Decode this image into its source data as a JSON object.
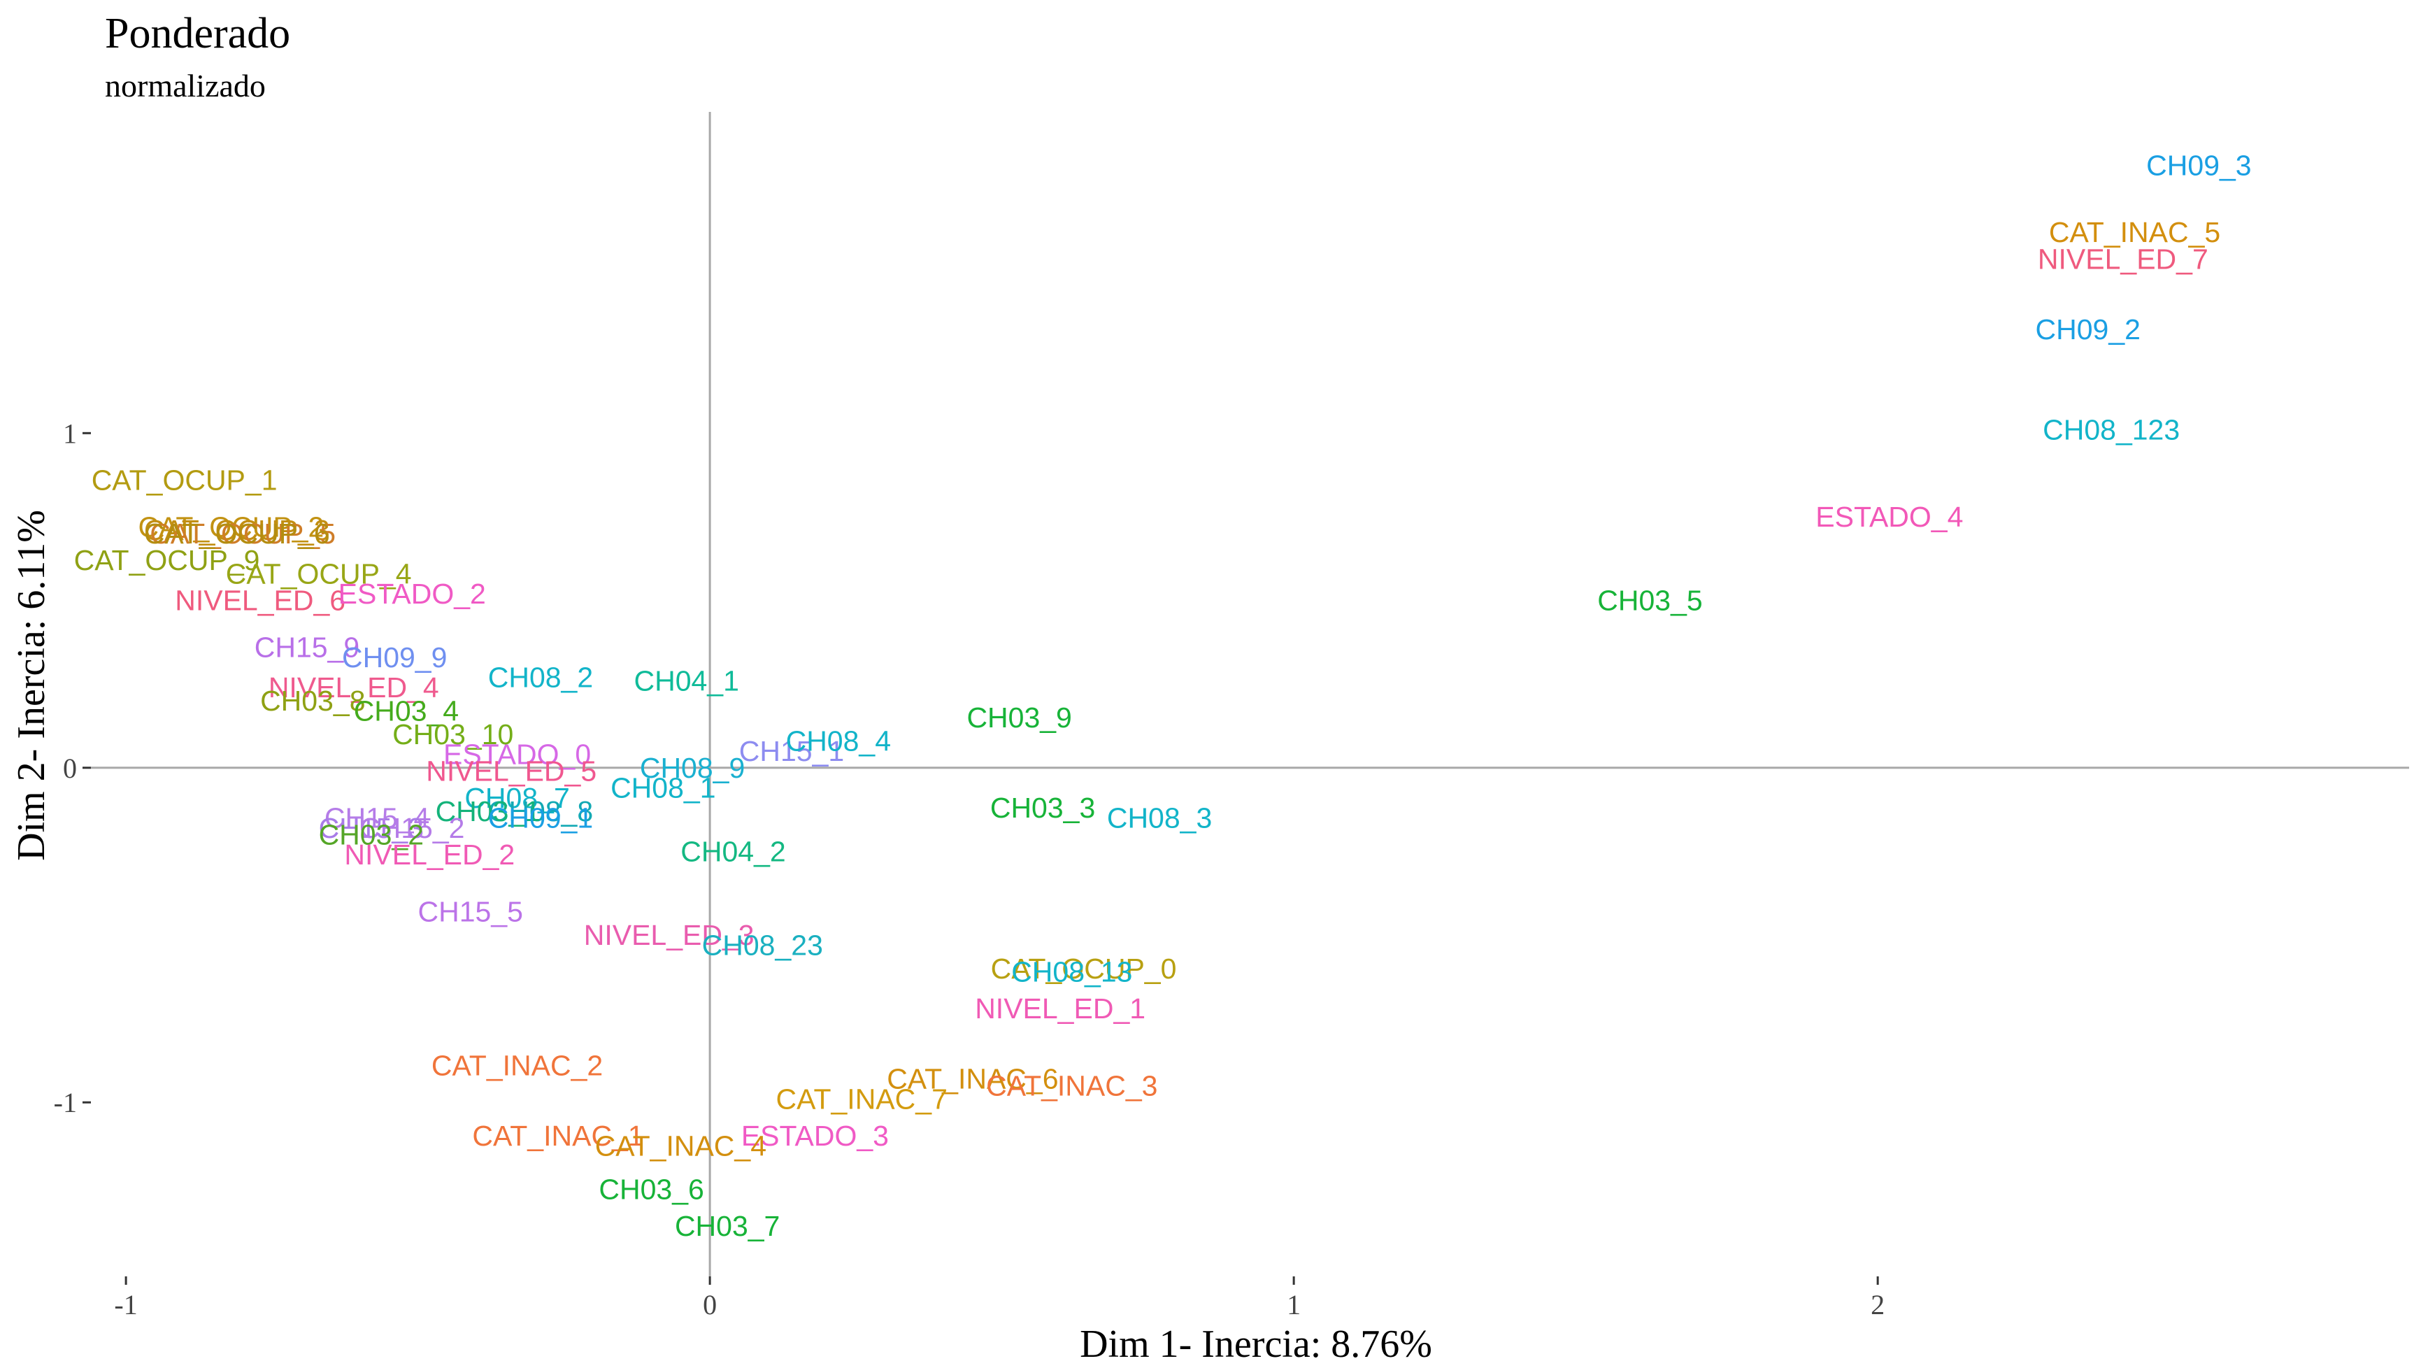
{
  "chart_data": {
    "type": "scatter",
    "title": "Ponderado",
    "subtitle": "normalizado",
    "xlabel": "Dim 1- Inercia: 8.76%",
    "ylabel": "Dim 2- Inercia: 6.11%",
    "xlim": [
      -1.06,
      2.91
    ],
    "ylim": [
      -1.52,
      1.96
    ],
    "x_ticks": [
      {
        "value": -1,
        "label": "-1"
      },
      {
        "value": 0,
        "label": "0"
      },
      {
        "value": 1,
        "label": "1"
      },
      {
        "value": 2,
        "label": "2"
      }
    ],
    "y_ticks": [
      {
        "value": 1,
        "label": "1"
      },
      {
        "value": 0,
        "label": "0"
      },
      {
        "value": -1,
        "label": "-1"
      }
    ],
    "reference_lines": {
      "x": 0,
      "y": 0
    },
    "grid": false,
    "legend": "none",
    "points": [
      {
        "label": "CH09_3",
        "x": 2.55,
        "y": 1.8,
        "color": "#1a9fe3"
      },
      {
        "label": "CAT_INAC_5",
        "x": 2.44,
        "y": 1.6,
        "color": "#d38f0e"
      },
      {
        "label": "NIVEL_ED_7",
        "x": 2.42,
        "y": 1.52,
        "color": "#ef5a7e"
      },
      {
        "label": "CH09_2",
        "x": 2.36,
        "y": 1.31,
        "color": "#1a9fe3"
      },
      {
        "label": "CH08_123",
        "x": 2.4,
        "y": 1.01,
        "color": "#12b4c9"
      },
      {
        "label": "ESTADO_4",
        "x": 2.02,
        "y": 0.75,
        "color": "#f258b8"
      },
      {
        "label": "CH03_5",
        "x": 1.61,
        "y": 0.5,
        "color": "#17b338"
      },
      {
        "label": "CAT_OCUP_1",
        "x": -0.9,
        "y": 0.86,
        "color": "#b39b11"
      },
      {
        "label": "CAT_OCUP_2",
        "x": -0.82,
        "y": 0.72,
        "color": "#c29212"
      },
      {
        "label": "CAT_OCUP_3",
        "x": -0.81,
        "y": 0.71,
        "color": "#c28e12"
      },
      {
        "label": "CAT_OCUP_5",
        "x": -0.8,
        "y": 0.7,
        "color": "#cf7d28"
      },
      {
        "label": "CAT_OCUP_6",
        "x": -0.81,
        "y": 0.7,
        "color": "#b48d10"
      },
      {
        "label": "CAT_OCUP_9",
        "x": -0.93,
        "y": 0.62,
        "color": "#8fa114"
      },
      {
        "label": "CAT_OCUP_4",
        "x": -0.67,
        "y": 0.58,
        "color": "#98a616"
      },
      {
        "label": "NIVEL_ED_6",
        "x": -0.77,
        "y": 0.5,
        "color": "#ef5a7e"
      },
      {
        "label": "ESTADO_2",
        "x": -0.51,
        "y": 0.52,
        "color": "#f05ac5"
      },
      {
        "label": "CH15_9",
        "x": -0.69,
        "y": 0.36,
        "color": "#b86fe8"
      },
      {
        "label": "CH09_9",
        "x": -0.54,
        "y": 0.33,
        "color": "#6f8ff0"
      },
      {
        "label": "NIVEL_ED_4",
        "x": -0.61,
        "y": 0.24,
        "color": "#ef5a8e"
      },
      {
        "label": "CH08_2",
        "x": -0.29,
        "y": 0.27,
        "color": "#12b4c9"
      },
      {
        "label": "CH04_1",
        "x": -0.04,
        "y": 0.26,
        "color": "#0fbb99"
      },
      {
        "label": "CH03_8",
        "x": -0.68,
        "y": 0.2,
        "color": "#8fa114"
      },
      {
        "label": "CH03_4",
        "x": -0.52,
        "y": 0.17,
        "color": "#44ab1c"
      },
      {
        "label": "CH03_10",
        "x": -0.44,
        "y": 0.1,
        "color": "#74ae18"
      },
      {
        "label": "ESTADO_0",
        "x": -0.33,
        "y": 0.04,
        "color": "#d668e6"
      },
      {
        "label": "NIVEL_ED_5",
        "x": -0.34,
        "y": -0.01,
        "color": "#f0578f"
      },
      {
        "label": "CH08_9",
        "x": -0.03,
        "y": 0.0,
        "color": "#1ab0d0"
      },
      {
        "label": "CH15_1",
        "x": 0.14,
        "y": 0.05,
        "color": "#8d8cf0"
      },
      {
        "label": "CH08_4",
        "x": 0.22,
        "y": 0.08,
        "color": "#12b4c9"
      },
      {
        "label": "CH03_9",
        "x": 0.53,
        "y": 0.15,
        "color": "#17b338"
      },
      {
        "label": "CH08_1",
        "x": -0.08,
        "y": -0.06,
        "color": "#12b4c9"
      },
      {
        "label": "CH08_7",
        "x": -0.33,
        "y": -0.09,
        "color": "#12b4c9"
      },
      {
        "label": "CH08_8",
        "x": -0.29,
        "y": -0.13,
        "color": "#12a9b4"
      },
      {
        "label": "CH03_1",
        "x": -0.38,
        "y": -0.13,
        "color": "#14b37a"
      },
      {
        "label": "CH09_1",
        "x": -0.29,
        "y": -0.15,
        "color": "#1a9fe3"
      },
      {
        "label": "CH15_4",
        "x": -0.57,
        "y": -0.15,
        "color": "#b57ce8"
      },
      {
        "label": "CH15_3",
        "x": -0.58,
        "y": -0.18,
        "color": "#a97ce8"
      },
      {
        "label": "CH15_2",
        "x": -0.51,
        "y": -0.18,
        "color": "#b57ce8"
      },
      {
        "label": "CH03_2",
        "x": -0.58,
        "y": -0.2,
        "color": "#55a627"
      },
      {
        "label": "NIVEL_ED_2",
        "x": -0.48,
        "y": -0.26,
        "color": "#f05ab5"
      },
      {
        "label": "CH04_2",
        "x": 0.04,
        "y": -0.25,
        "color": "#14b882"
      },
      {
        "label": "CH03_3",
        "x": 0.57,
        "y": -0.12,
        "color": "#17b338"
      },
      {
        "label": "CH08_3",
        "x": 0.77,
        "y": -0.15,
        "color": "#12b4c9"
      },
      {
        "label": "CH15_5",
        "x": -0.41,
        "y": -0.43,
        "color": "#bb73e8"
      },
      {
        "label": "NIVEL_ED_3",
        "x": -0.07,
        "y": -0.5,
        "color": "#e95cae"
      },
      {
        "label": "CH08_23",
        "x": 0.09,
        "y": -0.53,
        "color": "#1ab0c0"
      },
      {
        "label": "CAT_OCUP_0",
        "x": 0.64,
        "y": -0.6,
        "color": "#b8a011"
      },
      {
        "label": "CH08_13",
        "x": 0.62,
        "y": -0.61,
        "color": "#12b4c9"
      },
      {
        "label": "NIVEL_ED_1",
        "x": 0.6,
        "y": -0.72,
        "color": "#f05ab5"
      },
      {
        "label": "CAT_INAC_2",
        "x": -0.33,
        "y": -0.89,
        "color": "#f0743a"
      },
      {
        "label": "CAT_INAC_6",
        "x": 0.45,
        "y": -0.93,
        "color": "#d38f0e"
      },
      {
        "label": "CAT_INAC_3",
        "x": 0.62,
        "y": -0.95,
        "color": "#f0743a"
      },
      {
        "label": "CAT_INAC_7",
        "x": 0.26,
        "y": -0.99,
        "color": "#d39b0e"
      },
      {
        "label": "CAT_INAC_1",
        "x": -0.26,
        "y": -1.1,
        "color": "#f0743a"
      },
      {
        "label": "ESTADO_3",
        "x": 0.18,
        "y": -1.1,
        "color": "#f05ac5"
      },
      {
        "label": "CAT_INAC_4",
        "x": -0.05,
        "y": -1.13,
        "color": "#d38f0e"
      },
      {
        "label": "CH03_6",
        "x": -0.1,
        "y": -1.26,
        "color": "#17b338"
      },
      {
        "label": "CH03_7",
        "x": 0.03,
        "y": -1.37,
        "color": "#17b338"
      }
    ]
  }
}
